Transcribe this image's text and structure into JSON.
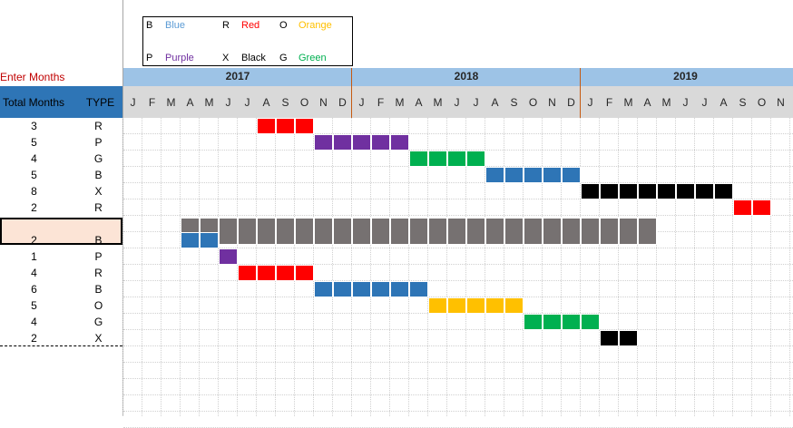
{
  "legend": [
    {
      "code": "B",
      "name": "Blue",
      "color": "#5b9bd5"
    },
    {
      "code": "R",
      "name": "Red",
      "color": "#ff0000"
    },
    {
      "code": "O",
      "name": "Orange",
      "color": "#ffc000"
    },
    {
      "code": "P",
      "name": "Purple",
      "color": "#7030a0"
    },
    {
      "code": "X",
      "name": "Black",
      "color": "#000000"
    },
    {
      "code": "G",
      "name": "Green",
      "color": "#00b050"
    }
  ],
  "enter_months_label": "Enter Months",
  "columns": {
    "total_months": "Total Months",
    "type": "TYPE"
  },
  "years": [
    "2017",
    "2018",
    "2019"
  ],
  "months": [
    "J",
    "F",
    "M",
    "A",
    "M",
    "J",
    "J",
    "A",
    "S",
    "O",
    "N",
    "D",
    "J",
    "F",
    "M",
    "A",
    "M",
    "J",
    "J",
    "A",
    "S",
    "O",
    "N",
    "D",
    "J",
    "F",
    "M",
    "A",
    "M",
    "J",
    "J",
    "A",
    "S",
    "O",
    "N"
  ],
  "type_colors": {
    "R": "#ff0000",
    "P": "#7030a0",
    "G": "#00b050",
    "B": "#2e75b6",
    "X": "#000000",
    "O": "#ffc000",
    "GRAY": "#767171"
  },
  "rows": [
    {
      "months": "3",
      "type": "R",
      "start": 7
    },
    {
      "months": "5",
      "type": "P",
      "start": 10
    },
    {
      "months": "4",
      "type": "G",
      "start": 15
    },
    {
      "months": "5",
      "type": "B",
      "start": 19
    },
    {
      "months": "8",
      "type": "X",
      "start": 24
    },
    {
      "months": "2",
      "type": "R",
      "start": 32
    },
    {
      "months": "",
      "type": "",
      "start": 3,
      "span": 25,
      "bar": "GRAY",
      "selected": true
    },
    {
      "months": "2",
      "type": "B",
      "start": 3
    },
    {
      "months": "1",
      "type": "P",
      "start": 5
    },
    {
      "months": "4",
      "type": "R",
      "start": 6
    },
    {
      "months": "6",
      "type": "B",
      "start": 10
    },
    {
      "months": "5",
      "type": "O",
      "start": 16
    },
    {
      "months": "4",
      "type": "G",
      "start": 21
    },
    {
      "months": "2",
      "type": "X",
      "start": 25
    }
  ]
}
